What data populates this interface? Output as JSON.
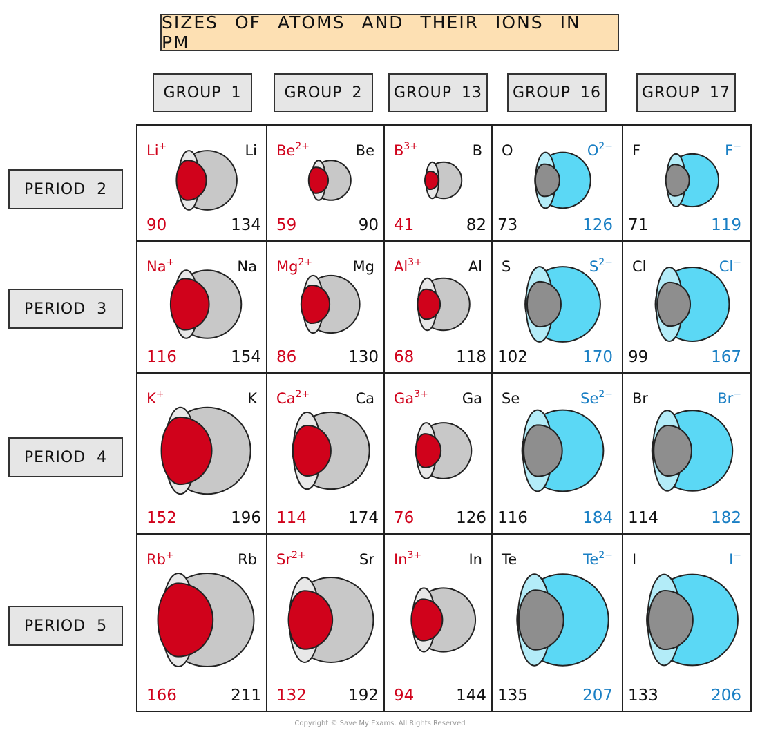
{
  "title": "SIZES OF ATOMS AND THEIR IONS IN PM",
  "groups": [
    "GROUP 1",
    "GROUP 2",
    "GROUP 13",
    "GROUP 16",
    "GROUP 17"
  ],
  "periods": [
    "PERIOD 2",
    "PERIOD 3",
    "PERIOD 4",
    "PERIOD 5"
  ],
  "colors": {
    "cation": "#d0021b",
    "anion_text": "#1a7fc4",
    "anion_fill": "#5bd8f5",
    "anion_rim": "#b3ecf8",
    "atom_gray": "#c8c8c8",
    "atom_rim": "#e8e8e8",
    "nonmetal_atom": "#8e8e8e"
  },
  "chart_data": {
    "type": "table",
    "unit": "pm",
    "cells": [
      {
        "group": "GROUP 1",
        "period": "PERIOD 2",
        "kind": "cation",
        "ion": "Li",
        "charge": "+",
        "atom": "Li",
        "ion_radius": 90,
        "atom_radius": 134
      },
      {
        "group": "GROUP 2",
        "period": "PERIOD 2",
        "kind": "cation",
        "ion": "Be",
        "charge": "2+",
        "atom": "Be",
        "ion_radius": 59,
        "atom_radius": 90
      },
      {
        "group": "GROUP 13",
        "period": "PERIOD 2",
        "kind": "cation",
        "ion": "B",
        "charge": "3+",
        "atom": "B",
        "ion_radius": 41,
        "atom_radius": 82
      },
      {
        "group": "GROUP 16",
        "period": "PERIOD 2",
        "kind": "anion",
        "ion": "O",
        "charge": "2−",
        "atom": "O",
        "ion_radius": 126,
        "atom_radius": 73
      },
      {
        "group": "GROUP 17",
        "period": "PERIOD 2",
        "kind": "anion",
        "ion": "F",
        "charge": "−",
        "atom": "F",
        "ion_radius": 119,
        "atom_radius": 71
      },
      {
        "group": "GROUP 1",
        "period": "PERIOD 3",
        "kind": "cation",
        "ion": "Na",
        "charge": "+",
        "atom": "Na",
        "ion_radius": 116,
        "atom_radius": 154
      },
      {
        "group": "GROUP 2",
        "period": "PERIOD 3",
        "kind": "cation",
        "ion": "Mg",
        "charge": "2+",
        "atom": "Mg",
        "ion_radius": 86,
        "atom_radius": 130
      },
      {
        "group": "GROUP 13",
        "period": "PERIOD 3",
        "kind": "cation",
        "ion": "Al",
        "charge": "3+",
        "atom": "Al",
        "ion_radius": 68,
        "atom_radius": 118
      },
      {
        "group": "GROUP 16",
        "period": "PERIOD 3",
        "kind": "anion",
        "ion": "S",
        "charge": "2−",
        "atom": "S",
        "ion_radius": 170,
        "atom_radius": 102
      },
      {
        "group": "GROUP 17",
        "period": "PERIOD 3",
        "kind": "anion",
        "ion": "Cl",
        "charge": "−",
        "atom": "Cl",
        "ion_radius": 167,
        "atom_radius": 99
      },
      {
        "group": "GROUP 1",
        "period": "PERIOD 4",
        "kind": "cation",
        "ion": "K",
        "charge": "+",
        "atom": "K",
        "ion_radius": 152,
        "atom_radius": 196
      },
      {
        "group": "GROUP 2",
        "period": "PERIOD 4",
        "kind": "cation",
        "ion": "Ca",
        "charge": "2+",
        "atom": "Ca",
        "ion_radius": 114,
        "atom_radius": 174
      },
      {
        "group": "GROUP 13",
        "period": "PERIOD 4",
        "kind": "cation",
        "ion": "Ga",
        "charge": "3+",
        "atom": "Ga",
        "ion_radius": 76,
        "atom_radius": 126
      },
      {
        "group": "GROUP 16",
        "period": "PERIOD 4",
        "kind": "anion",
        "ion": "Se",
        "charge": "2−",
        "atom": "Se",
        "ion_radius": 184,
        "atom_radius": 116
      },
      {
        "group": "GROUP 17",
        "period": "PERIOD 4",
        "kind": "anion",
        "ion": "Br",
        "charge": "−",
        "atom": "Br",
        "ion_radius": 182,
        "atom_radius": 114
      },
      {
        "group": "GROUP 1",
        "period": "PERIOD 5",
        "kind": "cation",
        "ion": "Rb",
        "charge": "+",
        "atom": "Rb",
        "ion_radius": 166,
        "atom_radius": 211
      },
      {
        "group": "GROUP 2",
        "period": "PERIOD 5",
        "kind": "cation",
        "ion": "Sr",
        "charge": "2+",
        "atom": "Sr",
        "ion_radius": 132,
        "atom_radius": 192
      },
      {
        "group": "GROUP 13",
        "period": "PERIOD 5",
        "kind": "cation",
        "ion": "In",
        "charge": "3+",
        "atom": "In",
        "ion_radius": 94,
        "atom_radius": 144
      },
      {
        "group": "GROUP 16",
        "period": "PERIOD 5",
        "kind": "anion",
        "ion": "Te",
        "charge": "2−",
        "atom": "Te",
        "ion_radius": 207,
        "atom_radius": 135
      },
      {
        "group": "GROUP 17",
        "period": "PERIOD 5",
        "kind": "anion",
        "ion": "I",
        "charge": "−",
        "atom": "I",
        "ion_radius": 206,
        "atom_radius": 133
      }
    ]
  },
  "copyright": "Copyright © Save My Exams. All Rights Reserved"
}
